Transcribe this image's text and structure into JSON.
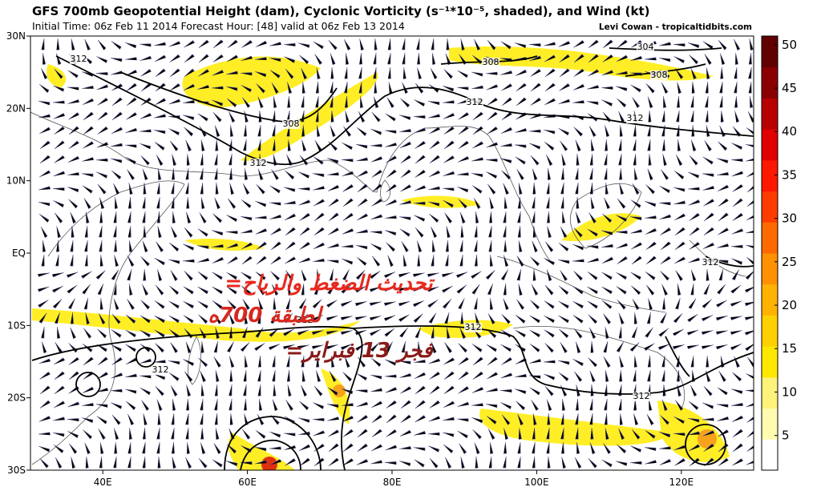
{
  "header": {
    "title": "GFS 700mb Geopotential Height (dam), Cyclonic Vorticity (s⁻¹*10⁻⁵, shaded), and Wind (kt)",
    "subtitle": "Initial Time: 06z Feb 11 2014 Forecast Hour: [48] valid at 06z Feb 13 2014",
    "credit": "Levi Cowan - tropicaltidbits.com"
  },
  "map": {
    "lat_range": [
      -30,
      30
    ],
    "lon_range": [
      30,
      130
    ],
    "lat_ticks": [
      {
        "value": 30,
        "label": "30N"
      },
      {
        "value": 20,
        "label": "20N"
      },
      {
        "value": 10,
        "label": "10N"
      },
      {
        "value": 0,
        "label": "EQ"
      },
      {
        "value": -10,
        "label": "10S"
      },
      {
        "value": -20,
        "label": "20S"
      },
      {
        "value": -30,
        "label": "30S"
      }
    ],
    "lon_ticks": [
      {
        "value": 40,
        "label": "40E"
      },
      {
        "value": 60,
        "label": "60E"
      },
      {
        "value": 80,
        "label": "80E"
      },
      {
        "value": 100,
        "label": "100E"
      },
      {
        "value": 120,
        "label": "120E"
      }
    ],
    "contour_labels": [
      "312",
      "308",
      "304",
      "308",
      "312",
      "312",
      "308",
      "312",
      "312",
      "312",
      "312",
      "312",
      "312"
    ]
  },
  "colorbar": {
    "range": [
      1,
      51
    ],
    "ticks": [
      5,
      10,
      15,
      20,
      25,
      30,
      35,
      40,
      45,
      50
    ]
  },
  "overlay": {
    "lines": [
      "=تحديث الضغط والرياح",
      "لطبقة 700ه",
      "=فجر 13 فبراير"
    ]
  }
}
